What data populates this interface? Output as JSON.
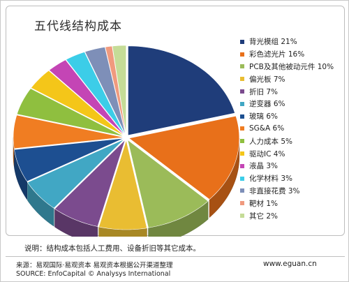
{
  "chart_data": {
    "type": "pie",
    "title": "五代线结构成本",
    "categories": [
      "背光模组",
      "彩色滤光片",
      "PCB及其他被动元件",
      "偏光板",
      "折旧",
      "逆变器",
      "玻璃",
      "SG&A",
      "人力成本",
      "驱动IC",
      "液晶",
      "化学材料",
      "非直接花费",
      "靶材",
      "其它"
    ],
    "values": [
      21,
      16,
      10,
      7,
      7,
      6,
      6,
      6,
      5,
      4,
      3,
      3,
      3,
      1,
      2
    ],
    "legend": [
      {
        "label": "背光模组  21%",
        "color": "#1f3d7a"
      },
      {
        "label": "彩色滤光片  16%",
        "color": "#e8701a"
      },
      {
        "label": "PCB及其他被动元件  10%",
        "color": "#9bbb59"
      },
      {
        "label": "偏光板  7%",
        "color": "#e9bd32"
      },
      {
        "label": "折旧  7%",
        "color": "#7b4b8e"
      },
      {
        "label": "逆变器  6%",
        "color": "#41a7c4"
      },
      {
        "label": "玻璃  6%",
        "color": "#1d4f91"
      },
      {
        "label": "SG&A  6%",
        "color": "#f07d22"
      },
      {
        "label": "人力成本  5%",
        "color": "#8fbf3f"
      },
      {
        "label": "驱动IC  4%",
        "color": "#f4c619"
      },
      {
        "label": "液晶  3%",
        "color": "#c445b5"
      },
      {
        "label": "化学材料  3%",
        "color": "#3ccde8"
      },
      {
        "label": "非直接花费  3%",
        "color": "#7e8fb8"
      },
      {
        "label": "靶材  1%",
        "color": "#f09a7e"
      },
      {
        "label": "其它  2%",
        "color": "#c5dc97"
      }
    ],
    "start_angle_deg": 90,
    "legend_position": "right",
    "style": "3d-exploded"
  },
  "note": "说明：结构成本包括人工费用、设备折旧等其它成本。",
  "source_cn": "来源：易观国际·易观资本  易观资本根据公开渠道整理",
  "source_en": "SOURCE: EnfoCapital © Analysys International",
  "website": "www.eguan.cn"
}
